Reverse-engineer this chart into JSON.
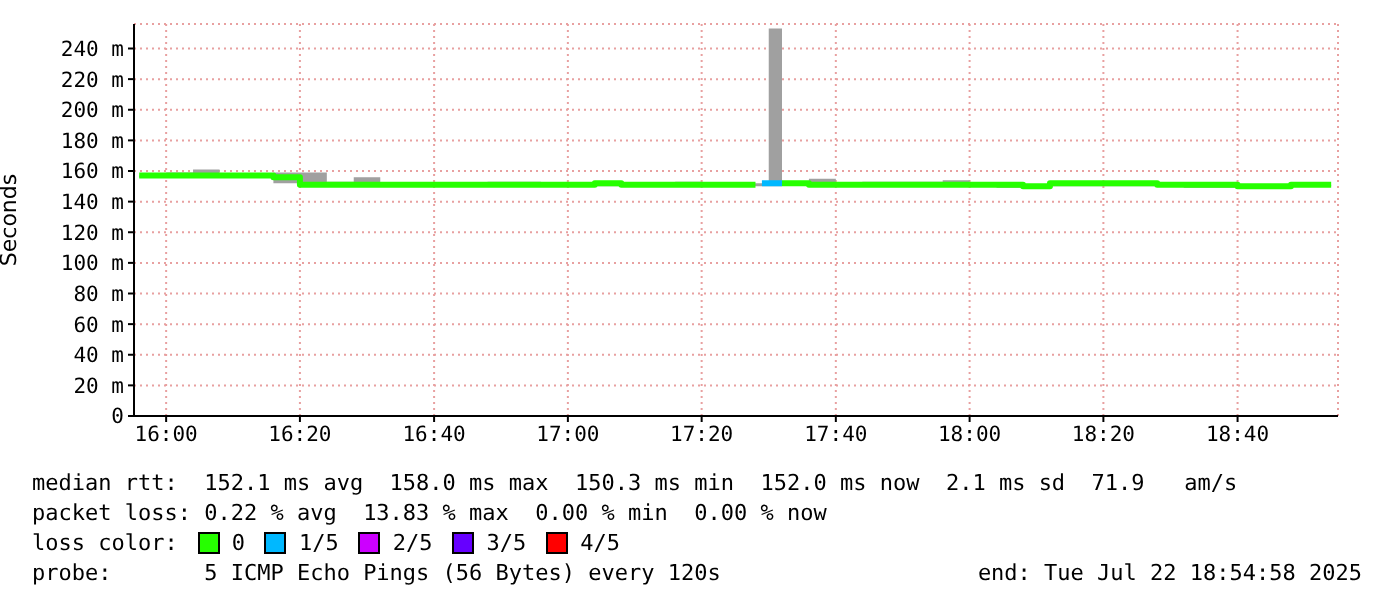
{
  "chart_data": {
    "type": "step",
    "ylabel": "Seconds",
    "x": [
      15.933,
      16,
      16.067,
      16.133,
      16.2,
      16.267,
      16.333,
      16.4,
      16.467,
      16.533,
      16.6,
      16.667,
      16.733,
      16.8,
      16.867,
      16.933,
      17,
      17.067,
      17.133,
      17.2,
      17.267,
      17.333,
      17.4,
      17.467,
      17.5,
      17.533,
      17.6,
      17.667,
      17.733,
      17.8,
      17.867,
      17.933,
      18,
      18.067,
      18.133,
      18.2,
      18.267,
      18.333,
      18.4,
      18.467,
      18.533,
      18.6,
      18.667,
      18.733,
      18.8,
      18.867,
      18.9
    ],
    "series": [
      {
        "name": "0",
        "color": "#26ff00",
        "values": [
          157,
          157,
          157,
          157,
          157,
          156,
          151,
          151,
          151,
          151,
          151,
          151,
          151,
          151,
          151,
          151,
          151,
          152,
          151,
          151,
          151,
          151,
          151,
          151,
          null,
          152,
          151,
          151,
          151,
          151,
          151,
          151,
          151,
          151,
          150,
          152,
          152,
          152,
          152,
          151,
          151,
          151,
          150,
          150,
          151,
          151,
          151
        ],
        "lower": [
          156,
          156,
          156,
          156,
          156,
          152,
          150,
          150,
          150,
          150,
          150,
          150,
          150,
          150,
          150,
          150,
          150,
          150,
          150,
          150,
          150,
          150,
          150,
          150,
          150,
          151,
          150,
          150,
          150,
          150,
          150,
          150,
          150,
          149,
          149,
          150,
          150,
          150,
          150,
          150,
          149,
          149,
          149,
          149,
          150,
          150,
          150
        ],
        "upper": [
          157,
          159,
          161,
          157,
          157,
          159,
          159,
          153,
          156,
          152,
          152,
          152,
          152,
          153,
          153,
          152,
          152,
          153,
          152,
          151,
          153,
          152,
          152,
          152,
          253,
          153,
          155,
          152,
          153,
          153,
          153,
          154,
          152,
          151,
          151,
          152,
          153,
          152,
          152,
          152,
          152,
          151,
          151,
          151,
          151,
          151,
          151
        ]
      },
      {
        "name": "1/5",
        "color": "#00b8ff",
        "x": [
          17.483,
          17.533
        ],
        "values": [
          152,
          152
        ]
      },
      {
        "name": "2/5",
        "color": "#cc00ff",
        "values": [
          null,
          null,
          null,
          null,
          null,
          null,
          null,
          null,
          null,
          null,
          null,
          null,
          null,
          null,
          null,
          null,
          null,
          null,
          null,
          null,
          null,
          null,
          null,
          null,
          null,
          null,
          null,
          null,
          null,
          null,
          null,
          null,
          null,
          null,
          null,
          null,
          null,
          null,
          null,
          null,
          null,
          null,
          null,
          null,
          null,
          null,
          null
        ]
      },
      {
        "name": "3/5",
        "color": "#6600ff",
        "values": [
          null,
          null,
          null,
          null,
          null,
          null,
          null,
          null,
          null,
          null,
          null,
          null,
          null,
          null,
          null,
          null,
          null,
          null,
          null,
          null,
          null,
          null,
          null,
          null,
          null,
          null,
          null,
          null,
          null,
          null,
          null,
          null,
          null,
          null,
          null,
          null,
          null,
          null,
          null,
          null,
          null,
          null,
          null,
          null,
          null,
          null,
          null
        ]
      },
      {
        "name": "4/5",
        "color": "#ff0000",
        "values": [
          null,
          null,
          null,
          null,
          null,
          null,
          null,
          null,
          null,
          null,
          null,
          null,
          null,
          null,
          null,
          null,
          null,
          null,
          null,
          null,
          null,
          null,
          null,
          null,
          null,
          null,
          null,
          null,
          null,
          null,
          null,
          null,
          null,
          null,
          null,
          null,
          null,
          null,
          null,
          null,
          null,
          null,
          null,
          null,
          null,
          null,
          null
        ]
      }
    ],
    "xlim": [
      15.92,
      18.917
    ],
    "xticks": [
      {
        "value": 16,
        "label": "16:00"
      },
      {
        "value": 16.333,
        "label": "16:20"
      },
      {
        "value": 16.667,
        "label": "16:40"
      },
      {
        "value": 17,
        "label": "17:00"
      },
      {
        "value": 17.333,
        "label": "17:20"
      },
      {
        "value": 17.667,
        "label": "17:40"
      },
      {
        "value": 18,
        "label": "18:00"
      },
      {
        "value": 18.333,
        "label": "18:20"
      },
      {
        "value": 18.667,
        "label": "18:40"
      }
    ],
    "ylim": [
      0,
      256
    ],
    "yticks": [
      0,
      {
        "value": 20,
        "label": "20 m"
      },
      {
        "value": 40,
        "label": "40 m"
      },
      {
        "value": 60,
        "label": "60 m"
      },
      {
        "value": 80,
        "label": "80 m"
      },
      {
        "value": 100,
        "label": "100 m"
      },
      {
        "value": 120,
        "label": "120 m"
      },
      {
        "value": 140,
        "label": "140 m"
      },
      {
        "value": 160,
        "label": "160 m"
      },
      {
        "value": 180,
        "label": "180 m"
      },
      {
        "value": 200,
        "label": "200 m"
      },
      {
        "value": 220,
        "label": "220 m"
      },
      {
        "value": 240,
        "label": "240 m"
      }
    ],
    "grid": true,
    "legend": "bottom",
    "legend_title": "loss color:",
    "annotations": [
      "median rtt:  152.1 ms avg  158.0 ms max  150.3 ms min  152.0 ms now  2.1 ms sd  71.9   am/s",
      "packet loss: 0.22 % avg  13.83 % max  0.00 % min  0.00 % now",
      "probe:       5 ICMP Echo Pings (56 Bytes) every 120s",
      "end: Tue Jul 22 18:54:58 2025"
    ]
  }
}
